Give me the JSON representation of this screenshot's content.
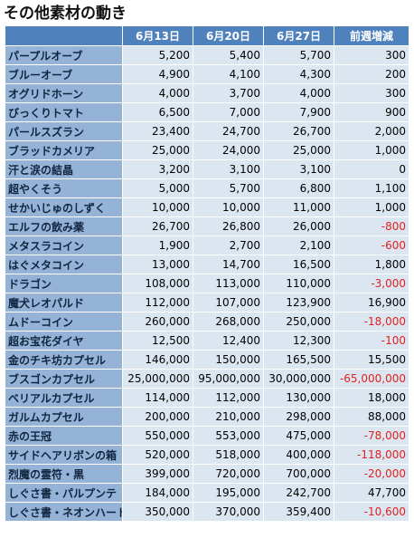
{
  "title": "その他素材の動き",
  "table": {
    "header": [
      "",
      "6月13日",
      "6月20日",
      "6月27日",
      "前週増減"
    ],
    "rows": [
      [
        "パープルオーブ",
        "5,200",
        "5,400",
        "5,700",
        "300"
      ],
      [
        "ブルーオーブ",
        "4,900",
        "4,100",
        "4,300",
        "200"
      ],
      [
        "オグリドホーン",
        "4,000",
        "3,700",
        "4,000",
        "300"
      ],
      [
        "びっくりトマト",
        "6,500",
        "7,000",
        "7,900",
        "900"
      ],
      [
        "パールスズラン",
        "23,400",
        "24,700",
        "26,700",
        "2,000"
      ],
      [
        "ブラッドカメリア",
        "25,000",
        "24,000",
        "25,000",
        "1,000"
      ],
      [
        "汗と涙の結晶",
        "3,200",
        "3,100",
        "3,100",
        "0"
      ],
      [
        "超やくそう",
        "5,000",
        "5,700",
        "6,800",
        "1,100"
      ],
      [
        "せかいじゅのしずく",
        "10,000",
        "10,000",
        "11,000",
        "1,000"
      ],
      [
        "エルフの飲み薬",
        "26,700",
        "26,800",
        "26,000",
        "-800"
      ],
      [
        "メタスラコイン",
        "1,900",
        "2,700",
        "2,100",
        "-600"
      ],
      [
        "はぐメタコイン",
        "13,000",
        "14,700",
        "16,500",
        "1,800"
      ],
      [
        "ドラゴン",
        "108,000",
        "113,000",
        "110,000",
        "-3,000"
      ],
      [
        "魔犬レオパルド",
        "112,000",
        "107,000",
        "123,900",
        "16,900"
      ],
      [
        "ムドーコイン",
        "260,000",
        "268,000",
        "250,000",
        "-18,000"
      ],
      [
        "超お宝花ダイヤ",
        "12,500",
        "12,400",
        "12,300",
        "-100"
      ],
      [
        "金のチキ坊カプセル",
        "146,000",
        "150,000",
        "165,500",
        "15,500"
      ],
      [
        "ブスゴンカプセル",
        "25,000,000",
        "95,000,000",
        "30,000,000",
        "-65,000,000"
      ],
      [
        "ベリアルカプセル",
        "114,000",
        "112,000",
        "130,000",
        "18,000"
      ],
      [
        "ガルムカプセル",
        "200,000",
        "210,000",
        "298,000",
        "88,000"
      ],
      [
        "赤の王冠",
        "550,000",
        "553,000",
        "475,000",
        "-78,000"
      ],
      [
        "サイドヘアリボンの箱",
        "520,000",
        "518,000",
        "400,000",
        "-118,000"
      ],
      [
        "烈魔の霊符・黒",
        "399,000",
        "720,000",
        "700,000",
        "-20,000"
      ],
      [
        "しぐさ書・パルプンテ",
        "184,000",
        "195,000",
        "242,700",
        "47,700"
      ],
      [
        "しぐさ書・ネオンハート",
        "350,000",
        "370,000",
        "359,400",
        "-10,600"
      ]
    ]
  }
}
